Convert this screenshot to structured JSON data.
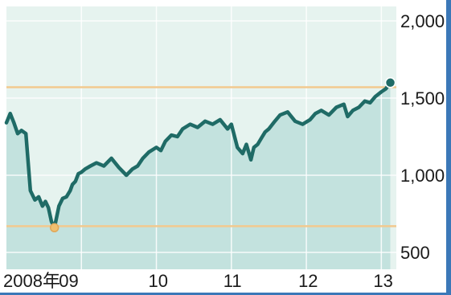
{
  "chart_data": {
    "type": "area",
    "title": "",
    "xlabel": "",
    "ylabel": "",
    "ylim": [
      500,
      2050
    ],
    "y_ticks": [
      {
        "value": 2000,
        "label": "2,000"
      },
      {
        "value": 1500,
        "label": "1,500"
      },
      {
        "value": 1000,
        "label": "1,000"
      },
      {
        "value": 500,
        "label": "500"
      }
    ],
    "x_ticks": [
      {
        "value": 2008.0,
        "label": "2008年"
      },
      {
        "value": 2009.0,
        "label": "09"
      },
      {
        "value": 2010.0,
        "label": "10"
      },
      {
        "value": 2011.0,
        "label": "11"
      },
      {
        "value": 2012.0,
        "label": "12"
      },
      {
        "value": 2013.0,
        "label": "13"
      }
    ],
    "xlim": [
      2008.0,
      2013.2
    ],
    "reference_lines": [
      1570,
      670
    ],
    "series": [
      {
        "color": "#1f6b66",
        "x": [
          2008.0,
          2008.05,
          2008.1,
          2008.15,
          2008.2,
          2008.26,
          2008.32,
          2008.38,
          2008.43,
          2008.48,
          2008.52,
          2008.56,
          2008.6,
          2008.64,
          2008.7,
          2008.75,
          2008.8,
          2008.85,
          2008.88,
          2008.92,
          2008.96,
          2009.0,
          2009.05,
          2009.12,
          2009.2,
          2009.3,
          2009.4,
          2009.5,
          2009.6,
          2009.68,
          2009.75,
          2009.82,
          2009.9,
          2010.0,
          2010.06,
          2010.12,
          2010.2,
          2010.28,
          2010.35,
          2010.45,
          2010.55,
          2010.65,
          2010.75,
          2010.85,
          2010.95,
          2011.0,
          2011.08,
          2011.15,
          2011.2,
          2011.26,
          2011.3,
          2011.35,
          2011.4,
          2011.45,
          2011.5,
          2011.58,
          2011.65,
          2011.75,
          2011.85,
          2011.95,
          2012.05,
          2012.12,
          2012.2,
          2012.3,
          2012.4,
          2012.5,
          2012.55,
          2012.62,
          2012.7,
          2012.78,
          2012.85,
          2012.92,
          2013.0,
          2013.06,
          2013.12
        ],
        "y": [
          1340,
          1400,
          1340,
          1270,
          1290,
          1270,
          900,
          840,
          860,
          800,
          830,
          790,
          700,
          660,
          800,
          850,
          860,
          900,
          940,
          960,
          1010,
          1020,
          1040,
          1060,
          1080,
          1060,
          1110,
          1050,
          1000,
          1040,
          1060,
          1110,
          1150,
          1180,
          1160,
          1220,
          1260,
          1250,
          1300,
          1330,
          1310,
          1350,
          1330,
          1360,
          1300,
          1330,
          1180,
          1140,
          1200,
          1100,
          1180,
          1200,
          1240,
          1280,
          1300,
          1350,
          1390,
          1410,
          1350,
          1330,
          1360,
          1400,
          1420,
          1390,
          1440,
          1460,
          1380,
          1420,
          1440,
          1480,
          1470,
          1510,
          1540,
          1560,
          1600
        ]
      }
    ],
    "markers": [
      {
        "x": 2008.64,
        "y": 660
      },
      {
        "x": 2013.12,
        "y": 1600
      }
    ]
  }
}
